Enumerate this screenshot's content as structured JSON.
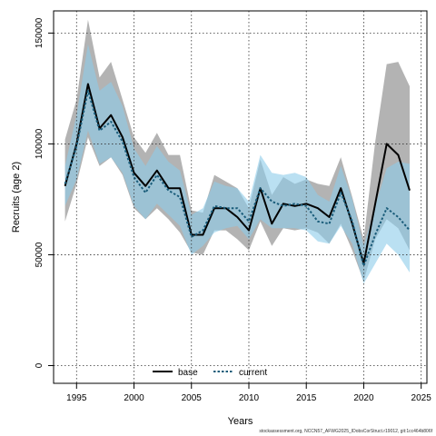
{
  "chart_data": {
    "type": "line",
    "title": "",
    "xlabel": "Years",
    "ylabel": "Recruits (age 2)",
    "xlim": [
      1993.0,
      2025.5
    ],
    "ylim": [
      -8000,
      160000
    ],
    "xticks": [
      1995,
      2000,
      2005,
      2010,
      2015,
      2020,
      2025
    ],
    "yticks": [
      0,
      50000,
      100000,
      150000
    ],
    "ytick_labels": [
      "0",
      "50000",
      "100000",
      "150000"
    ],
    "grid": true,
    "legend_position": "bottom-center",
    "x": [
      1994,
      1995,
      1996,
      1997,
      1998,
      1999,
      2000,
      2001,
      2002,
      2003,
      2004,
      2005,
      2006,
      2007,
      2008,
      2009,
      2010,
      2011,
      2012,
      2013,
      2014,
      2015,
      2016,
      2017,
      2018,
      2019,
      2020,
      2021,
      2022,
      2023,
      2024
    ],
    "series": [
      {
        "name": "base",
        "color": "#000000",
        "band_color": "#a6a6a6",
        "values": [
          81000,
          100000,
          127000,
          107000,
          113000,
          103000,
          87000,
          81000,
          88000,
          80000,
          80000,
          59000,
          59000,
          71000,
          71000,
          67000,
          61000,
          80000,
          64000,
          73000,
          72000,
          73000,
          71000,
          67000,
          80000,
          64000,
          46000,
          73000,
          100000,
          95000,
          79000
        ],
        "lower": [
          65000,
          82000,
          103000,
          90000,
          94000,
          86000,
          71000,
          66000,
          71000,
          66000,
          60000,
          51000,
          50000,
          61000,
          61000,
          57000,
          52000,
          65000,
          54000,
          62000,
          61000,
          62000,
          60000,
          55000,
          64000,
          52000,
          38000,
          57000,
          66000,
          62000,
          52000
        ],
        "upper": [
          102000,
          120000,
          156000,
          130000,
          137000,
          120000,
          103000,
          96000,
          105000,
          95000,
          95000,
          70000,
          69000,
          86000,
          83000,
          80000,
          71000,
          93000,
          77000,
          85000,
          82000,
          84000,
          82000,
          81000,
          94000,
          76000,
          57000,
          101000,
          136000,
          137000,
          126000
        ]
      },
      {
        "name": "current",
        "color": "#1a5c7a",
        "band_color": "#8ccbea",
        "values": [
          82000,
          99000,
          124000,
          106000,
          110000,
          101000,
          85000,
          78000,
          86000,
          79000,
          76000,
          58000,
          61000,
          72000,
          71000,
          71000,
          65000,
          80000,
          74000,
          72000,
          73000,
          72000,
          65000,
          64000,
          78000,
          65000,
          45000,
          59000,
          71000,
          67000,
          61000
        ],
        "lower": [
          72000,
          84000,
          106000,
          91000,
          94000,
          87000,
          72000,
          66000,
          73000,
          68000,
          63000,
          50000,
          54000,
          60000,
          62000,
          63000,
          57000,
          66000,
          62000,
          62000,
          62000,
          61000,
          56000,
          55000,
          63000,
          55000,
          37000,
          46000,
          55000,
          50000,
          42000
        ],
        "upper": [
          90000,
          113000,
          145000,
          124000,
          128000,
          117000,
          98000,
          90000,
          99000,
          92000,
          88000,
          68000,
          71000,
          83000,
          81000,
          80000,
          74000,
          95000,
          87000,
          86000,
          87000,
          85000,
          77000,
          74000,
          90000,
          75000,
          54000,
          72000,
          89000,
          92000,
          91000
        ]
      }
    ]
  },
  "footer_text": "stockassessment.org, NCCN57_AFWG2025_IDobsCorStruct.r19012, git:1cc464b806f"
}
